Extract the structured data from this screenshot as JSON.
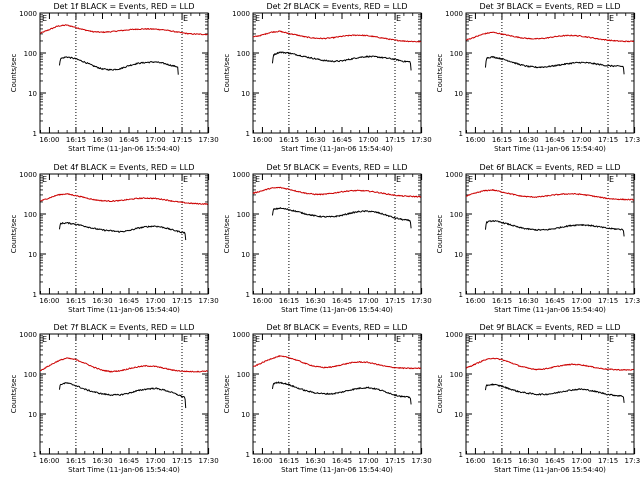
{
  "figure": {
    "background": "#ffffff",
    "events_color": "#000000",
    "lld_color": "#cc0000"
  },
  "chart_data": [
    {
      "type": "line",
      "title": "Det 1f BLACK = Events, RED = LLD",
      "xlabel": "Start Time (11-Jan-06 15:54:40)",
      "ylabel": "Counts/sec",
      "x_ticklabels": [
        "16:00",
        "16:15",
        "16:30",
        "16:45",
        "17:00",
        "17:15",
        "17:30"
      ],
      "y_ticklabels": [
        "1",
        "10",
        "100",
        "1000"
      ],
      "yscale": "log",
      "ylim": [
        1,
        1000
      ],
      "xlim_minutes": [
        0,
        95
      ],
      "markers": {
        "x_minutes": [
          20.3,
          80.3
        ],
        "label": "E"
      },
      "series": [
        {
          "color": "#cc0000",
          "x": [
            0,
            5,
            10,
            15,
            20,
            25,
            30,
            35,
            40,
            45,
            50,
            55,
            60,
            65,
            70,
            75,
            80,
            85,
            90,
            95
          ],
          "y": [
            310,
            380,
            470,
            500,
            440,
            380,
            340,
            330,
            340,
            360,
            380,
            395,
            400,
            395,
            380,
            350,
            320,
            300,
            295,
            290
          ]
        },
        {
          "color": "#000000",
          "x": [
            11,
            11.5,
            15,
            20,
            25,
            30,
            35,
            40,
            45,
            50,
            55,
            60,
            65,
            70,
            75,
            78,
            78.5
          ],
          "y": [
            50,
            72,
            80,
            72,
            60,
            48,
            40,
            38,
            40,
            48,
            55,
            58,
            60,
            55,
            48,
            45,
            14
          ]
        }
      ]
    },
    {
      "type": "line",
      "title": "Det 2f BLACK = Events, RED = LLD",
      "xlabel": "Start Time (11-Jan-06 15:54:40)",
      "ylabel": "Counts/sec",
      "x_ticklabels": [
        "16:00",
        "16:15",
        "16:30",
        "16:45",
        "17:00",
        "17:15",
        "17:30"
      ],
      "y_ticklabels": [
        "1",
        "10",
        "100",
        "1000"
      ],
      "yscale": "log",
      "ylim": [
        1,
        1000
      ],
      "xlim_minutes": [
        0,
        95
      ],
      "markers": {
        "x_minutes": [
          20.3,
          80.3
        ],
        "label": "E"
      },
      "series": [
        {
          "color": "#cc0000",
          "x": [
            0,
            5,
            10,
            15,
            20,
            25,
            30,
            35,
            40,
            45,
            50,
            55,
            60,
            65,
            70,
            75,
            80,
            85,
            90,
            95
          ],
          "y": [
            250,
            280,
            330,
            350,
            310,
            280,
            250,
            235,
            230,
            240,
            260,
            275,
            280,
            270,
            250,
            230,
            210,
            200,
            195,
            190
          ]
        },
        {
          "color": "#000000",
          "x": [
            11,
            11.5,
            15,
            20,
            25,
            30,
            35,
            40,
            45,
            50,
            55,
            60,
            65,
            70,
            75,
            80,
            85,
            89,
            89.5
          ],
          "y": [
            55,
            90,
            105,
            100,
            90,
            80,
            72,
            65,
            62,
            63,
            70,
            78,
            82,
            80,
            75,
            70,
            62,
            60,
            32
          ]
        }
      ]
    },
    {
      "type": "line",
      "title": "Det 3f BLACK = Events, RED = LLD",
      "xlabel": "Start Time (11-Jan-06 15:54:40)",
      "ylabel": "Counts/sec",
      "x_ticklabels": [
        "16:00",
        "16:15",
        "16:30",
        "16:45",
        "17:00",
        "17:15",
        "17:30"
      ],
      "y_ticklabels": [
        "1",
        "10",
        "100",
        "1000"
      ],
      "yscale": "log",
      "ylim": [
        1,
        1000
      ],
      "xlim_minutes": [
        0,
        95
      ],
      "markers": {
        "x_minutes": [
          20.3,
          80.3
        ],
        "label": "E"
      },
      "series": [
        {
          "color": "#cc0000",
          "x": [
            0,
            5,
            10,
            15,
            20,
            25,
            30,
            35,
            40,
            45,
            50,
            55,
            60,
            65,
            70,
            75,
            80,
            85,
            90,
            95
          ],
          "y": [
            210,
            250,
            300,
            330,
            300,
            270,
            245,
            230,
            225,
            235,
            255,
            270,
            275,
            265,
            245,
            225,
            210,
            200,
            195,
            195
          ]
        },
        {
          "color": "#000000",
          "x": [
            11,
            11.5,
            15,
            20,
            25,
            30,
            35,
            40,
            45,
            50,
            55,
            60,
            65,
            70,
            75,
            80,
            85,
            89,
            89.5
          ],
          "y": [
            45,
            75,
            80,
            72,
            62,
            52,
            46,
            44,
            45,
            48,
            52,
            56,
            58,
            56,
            52,
            48,
            47,
            46,
            26
          ]
        }
      ]
    },
    {
      "type": "line",
      "title": "Det 4f BLACK = Events, RED = LLD",
      "xlabel": "Start Time (11-Jan-06 15:54:40)",
      "ylabel": "Counts/sec",
      "x_ticklabels": [
        "16:00",
        "16:15",
        "16:30",
        "16:45",
        "17:00",
        "17:15",
        "17:30"
      ],
      "y_ticklabels": [
        "1",
        "10",
        "100",
        "1000"
      ],
      "yscale": "log",
      "ylim": [
        1,
        1000
      ],
      "xlim_minutes": [
        0,
        95
      ],
      "markers": {
        "x_minutes": [
          20.3,
          80.3
        ],
        "label": "E"
      },
      "series": [
        {
          "color": "#cc0000",
          "x": [
            0,
            5,
            10,
            15,
            20,
            25,
            30,
            35,
            40,
            45,
            50,
            55,
            60,
            65,
            70,
            75,
            80,
            85,
            90,
            95
          ],
          "y": [
            210,
            250,
            300,
            320,
            290,
            260,
            230,
            215,
            210,
            215,
            230,
            245,
            250,
            245,
            230,
            210,
            195,
            185,
            180,
            178
          ]
        },
        {
          "color": "#000000",
          "x": [
            11,
            11.5,
            15,
            20,
            25,
            30,
            35,
            40,
            45,
            50,
            55,
            60,
            65,
            70,
            75,
            80,
            82,
            82.5
          ],
          "y": [
            40,
            58,
            60,
            56,
            50,
            44,
            40,
            38,
            36,
            38,
            44,
            48,
            50,
            46,
            40,
            35,
            34,
            20
          ]
        }
      ]
    },
    {
      "type": "line",
      "title": "Det 5f BLACK = Events, RED = LLD",
      "xlabel": "Start Time (11-Jan-06 15:54:40)",
      "ylabel": "Counts/sec",
      "x_ticklabels": [
        "16:00",
        "16:15",
        "16:30",
        "16:45",
        "17:00",
        "17:15",
        "17:30"
      ],
      "y_ticklabels": [
        "1",
        "10",
        "100",
        "1000"
      ],
      "yscale": "log",
      "ylim": [
        1,
        1000
      ],
      "xlim_minutes": [
        0,
        95
      ],
      "markers": {
        "x_minutes": [
          20.3,
          80.3
        ],
        "label": "E"
      },
      "series": [
        {
          "color": "#cc0000",
          "x": [
            0,
            5,
            10,
            15,
            20,
            25,
            30,
            35,
            40,
            45,
            50,
            55,
            60,
            65,
            70,
            75,
            80,
            85,
            90,
            95
          ],
          "y": [
            330,
            380,
            440,
            460,
            420,
            370,
            330,
            310,
            310,
            330,
            360,
            380,
            385,
            375,
            350,
            320,
            295,
            280,
            275,
            270
          ]
        },
        {
          "color": "#000000",
          "x": [
            11,
            11.5,
            15,
            20,
            25,
            30,
            35,
            40,
            45,
            50,
            55,
            60,
            65,
            70,
            75,
            80,
            85,
            89,
            89.5
          ],
          "y": [
            90,
            130,
            140,
            130,
            115,
            100,
            90,
            85,
            85,
            92,
            105,
            115,
            118,
            110,
            95,
            80,
            72,
            68,
            38
          ]
        }
      ]
    },
    {
      "type": "line",
      "title": "Det 6f BLACK = Events, RED = LLD",
      "xlabel": "Start Time (11-Jan-06 15:54:40)",
      "ylabel": "Counts/sec",
      "x_ticklabels": [
        "16:00",
        "16:15",
        "16:30",
        "16:45",
        "17:00",
        "17:15",
        "17:30"
      ],
      "y_ticklabels": [
        "1",
        "10",
        "100",
        "1000"
      ],
      "yscale": "log",
      "ylim": [
        1,
        1000
      ],
      "xlim_minutes": [
        0,
        95
      ],
      "markers": {
        "x_minutes": [
          20.3,
          80.3
        ],
        "label": "E"
      },
      "series": [
        {
          "color": "#cc0000",
          "x": [
            0,
            5,
            10,
            15,
            20,
            25,
            30,
            35,
            40,
            45,
            50,
            55,
            60,
            65,
            70,
            75,
            80,
            85,
            90,
            95
          ],
          "y": [
            280,
            330,
            380,
            400,
            360,
            320,
            285,
            270,
            265,
            280,
            300,
            315,
            320,
            310,
            290,
            265,
            245,
            235,
            230,
            228
          ]
        },
        {
          "color": "#000000",
          "x": [
            11,
            11.5,
            15,
            20,
            25,
            30,
            35,
            40,
            45,
            50,
            55,
            60,
            65,
            70,
            75,
            80,
            85,
            89,
            89.5
          ],
          "y": [
            40,
            62,
            68,
            62,
            54,
            46,
            42,
            40,
            40,
            43,
            48,
            52,
            54,
            52,
            48,
            44,
            42,
            41,
            24
          ]
        }
      ]
    },
    {
      "type": "line",
      "title": "Det 7f BLACK = Events, RED = LLD",
      "xlabel": "Start Time (11-Jan-06 15:54:40)",
      "ylabel": "Counts/sec",
      "x_ticklabels": [
        "16:00",
        "16:15",
        "16:30",
        "16:45",
        "17:00",
        "17:15",
        "17:30"
      ],
      "y_ticklabels": [
        "1",
        "10",
        "100",
        "1000"
      ],
      "yscale": "log",
      "ylim": [
        1,
        1000
      ],
      "xlim_minutes": [
        0,
        95
      ],
      "markers": {
        "x_minutes": [
          20.3,
          80.3
        ],
        "label": "E"
      },
      "series": [
        {
          "color": "#cc0000",
          "x": [
            0,
            5,
            10,
            15,
            20,
            25,
            30,
            35,
            40,
            45,
            50,
            55,
            60,
            65,
            70,
            75,
            80,
            85,
            90,
            95
          ],
          "y": [
            120,
            160,
            210,
            250,
            230,
            190,
            150,
            125,
            115,
            120,
            135,
            150,
            160,
            155,
            140,
            125,
            118,
            115,
            115,
            120
          ]
        },
        {
          "color": "#000000",
          "x": [
            11,
            11.5,
            15,
            20,
            25,
            30,
            35,
            40,
            45,
            50,
            55,
            60,
            65,
            70,
            75,
            80,
            82,
            82.5
          ],
          "y": [
            40,
            55,
            60,
            52,
            42,
            36,
            32,
            30,
            30,
            33,
            38,
            42,
            44,
            40,
            34,
            28,
            26,
            12
          ]
        }
      ]
    },
    {
      "type": "line",
      "title": "Det 8f BLACK = Events, RED = LLD",
      "xlabel": "Start Time (11-Jan-06 15:54:40)",
      "ylabel": "Counts/sec",
      "x_ticklabels": [
        "16:00",
        "16:15",
        "16:30",
        "16:45",
        "17:00",
        "17:15",
        "17:30"
      ],
      "y_ticklabels": [
        "1",
        "10",
        "100",
        "1000"
      ],
      "yscale": "log",
      "ylim": [
        1,
        1000
      ],
      "xlim_minutes": [
        0,
        95
      ],
      "markers": {
        "x_minutes": [
          20.3,
          80.3
        ],
        "label": "E"
      },
      "series": [
        {
          "color": "#cc0000",
          "x": [
            0,
            5,
            10,
            15,
            20,
            25,
            30,
            35,
            40,
            45,
            50,
            55,
            60,
            65,
            70,
            75,
            80,
            85,
            90,
            95
          ],
          "y": [
            150,
            190,
            240,
            280,
            260,
            220,
            180,
            155,
            145,
            150,
            170,
            190,
            200,
            195,
            175,
            155,
            145,
            140,
            138,
            140
          ]
        },
        {
          "color": "#000000",
          "x": [
            11,
            11.5,
            15,
            20,
            25,
            30,
            35,
            40,
            45,
            50,
            55,
            60,
            65,
            70,
            75,
            80,
            85,
            89,
            89.5
          ],
          "y": [
            42,
            58,
            62,
            55,
            45,
            38,
            34,
            32,
            32,
            35,
            40,
            44,
            46,
            42,
            36,
            30,
            27,
            26,
            16
          ]
        }
      ]
    },
    {
      "type": "line",
      "title": "Det 9f BLACK = Events, RED = LLD",
      "xlabel": "Start Time (11-Jan-06 15:54:40)",
      "ylabel": "Counts/sec",
      "x_ticklabels": [
        "16:00",
        "16:15",
        "16:30",
        "16:45",
        "17:00",
        "17:15",
        "17:30"
      ],
      "y_ticklabels": [
        "1",
        "10",
        "100",
        "1000"
      ],
      "yscale": "log",
      "ylim": [
        1,
        1000
      ],
      "xlim_minutes": [
        0,
        95
      ],
      "markers": {
        "x_minutes": [
          20.3,
          80.3
        ],
        "label": "E"
      },
      "series": [
        {
          "color": "#cc0000",
          "x": [
            0,
            5,
            10,
            15,
            20,
            25,
            30,
            35,
            40,
            45,
            50,
            55,
            60,
            65,
            70,
            75,
            80,
            85,
            90,
            95
          ],
          "y": [
            140,
            175,
            220,
            250,
            230,
            195,
            160,
            140,
            130,
            135,
            150,
            165,
            175,
            170,
            155,
            140,
            132,
            128,
            126,
            128
          ]
        },
        {
          "color": "#000000",
          "x": [
            11,
            11.5,
            15,
            20,
            25,
            30,
            35,
            40,
            45,
            50,
            55,
            60,
            65,
            70,
            75,
            80,
            85,
            89,
            89.5
          ],
          "y": [
            38,
            52,
            55,
            50,
            42,
            36,
            33,
            31,
            31,
            33,
            37,
            40,
            42,
            39,
            35,
            31,
            29,
            28,
            17
          ]
        }
      ]
    }
  ]
}
